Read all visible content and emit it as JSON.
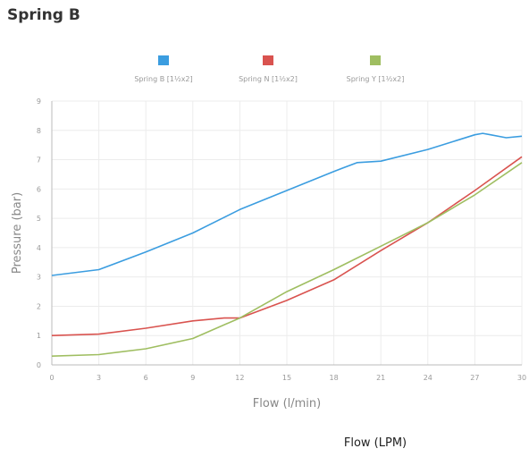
{
  "page": {
    "title": "Spring B",
    "footer_caption": "Flow (LPM)"
  },
  "colors": {
    "grid": "#ececec",
    "axis": "#bbbbbb"
  },
  "chart_data": {
    "type": "line",
    "title": "",
    "xlabel": "Flow (l/min)",
    "ylabel": "Pressure (bar)",
    "xlim": [
      0,
      30
    ],
    "ylim": [
      0,
      9
    ],
    "x_ticks": [
      0,
      3,
      6,
      9,
      12,
      15,
      18,
      21,
      24,
      27,
      30
    ],
    "y_ticks": [
      0,
      1,
      2,
      3,
      4,
      5,
      6,
      7,
      8,
      9
    ],
    "x_tick_labels": [
      "0",
      "3",
      "6",
      "9",
      "12",
      "15",
      "18",
      "21",
      "24",
      "27",
      "30"
    ],
    "y_tick_labels": [
      "0",
      "1",
      "2",
      "3",
      "4",
      "5",
      "6",
      "7",
      "8",
      "9"
    ],
    "grid": true,
    "legend_position": "top-center",
    "series": [
      {
        "name": "Spring B [1½x2]",
        "color": "#3b9de0",
        "points": [
          [
            0,
            3.05
          ],
          [
            3,
            3.25
          ],
          [
            6,
            3.85
          ],
          [
            9,
            4.5
          ],
          [
            12,
            5.3
          ],
          [
            15,
            5.95
          ],
          [
            18,
            6.6
          ],
          [
            19.5,
            6.9
          ],
          [
            21,
            6.95
          ],
          [
            24,
            7.35
          ],
          [
            27,
            7.85
          ],
          [
            27.5,
            7.9
          ],
          [
            28,
            7.85
          ],
          [
            29,
            7.75
          ],
          [
            30,
            7.8
          ]
        ]
      },
      {
        "name": "Spring N [1½x2]",
        "color": "#d9534f",
        "points": [
          [
            0,
            1.0
          ],
          [
            3,
            1.05
          ],
          [
            6,
            1.25
          ],
          [
            9,
            1.5
          ],
          [
            11,
            1.6
          ],
          [
            12,
            1.6
          ],
          [
            15,
            2.2
          ],
          [
            18,
            2.9
          ],
          [
            21,
            3.9
          ],
          [
            24,
            4.85
          ],
          [
            27,
            5.95
          ],
          [
            30,
            7.1
          ]
        ]
      },
      {
        "name": "Spring Y [1½x2]",
        "color": "#9fbe61",
        "points": [
          [
            0,
            0.3
          ],
          [
            3,
            0.35
          ],
          [
            6,
            0.55
          ],
          [
            9,
            0.9
          ],
          [
            12,
            1.6
          ],
          [
            15,
            2.5
          ],
          [
            18,
            3.25
          ],
          [
            21,
            4.05
          ],
          [
            24,
            4.85
          ],
          [
            27,
            5.8
          ],
          [
            30,
            6.9
          ]
        ]
      }
    ]
  }
}
